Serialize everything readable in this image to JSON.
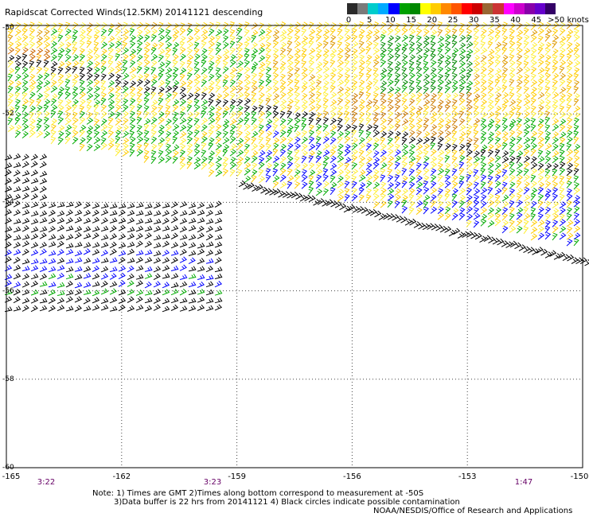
{
  "title": "Rapidscat Corrected Winds(12.5KM) 20141121 descending",
  "colorbar": {
    "labels": [
      "0",
      "5",
      "10",
      "15",
      "20",
      "25",
      "30",
      "35",
      "40",
      "45",
      ">50 knots"
    ],
    "colors": [
      "#2a2a2a",
      "#7a7a7a",
      "#00cccc",
      "#00aaff",
      "#0000ff",
      "#00a000",
      "#008800",
      "#ffff00",
      "#ffcc00",
      "#ff8800",
      "#ff5500",
      "#ff0000",
      "#cc0000",
      "#996633",
      "#cc3333",
      "#ff00ff",
      "#cc00cc",
      "#8800aa",
      "#6600cc",
      "#330066"
    ]
  },
  "axes": {
    "lat_labels": [
      "-50",
      "-52",
      "-54",
      "-56",
      "-58",
      "-60"
    ],
    "lon_labels": [
      "-165",
      "-162",
      "-159",
      "-156",
      "-153",
      "-150"
    ],
    "time_labels": [
      "3:22",
      "3:23",
      "1:47"
    ]
  },
  "map_data": {
    "lat_range": [
      -60,
      -50
    ],
    "lon_range": [
      -165,
      -150
    ],
    "grid": "dotted, every 3° longitude and 2° latitude",
    "swaths": [
      {
        "pass_time": "1:47",
        "dominant_speed_knots": "20-30",
        "region": "north and east, lat -50 to -56"
      },
      {
        "pass_time": "3:22",
        "dominant_speed_knots": "5-20",
        "region": "west, lat -53.5 to -56"
      }
    ]
  },
  "notes": {
    "line1": "Note: 1) Times are GMT 2)Times along bottom correspond to measurement at -50S",
    "line2": "3)Data buffer is 22 hrs from 20141121 4) Black circles indicate possible contamination",
    "line3": "NOAA/NESDIS/Office of Research and Applications"
  }
}
